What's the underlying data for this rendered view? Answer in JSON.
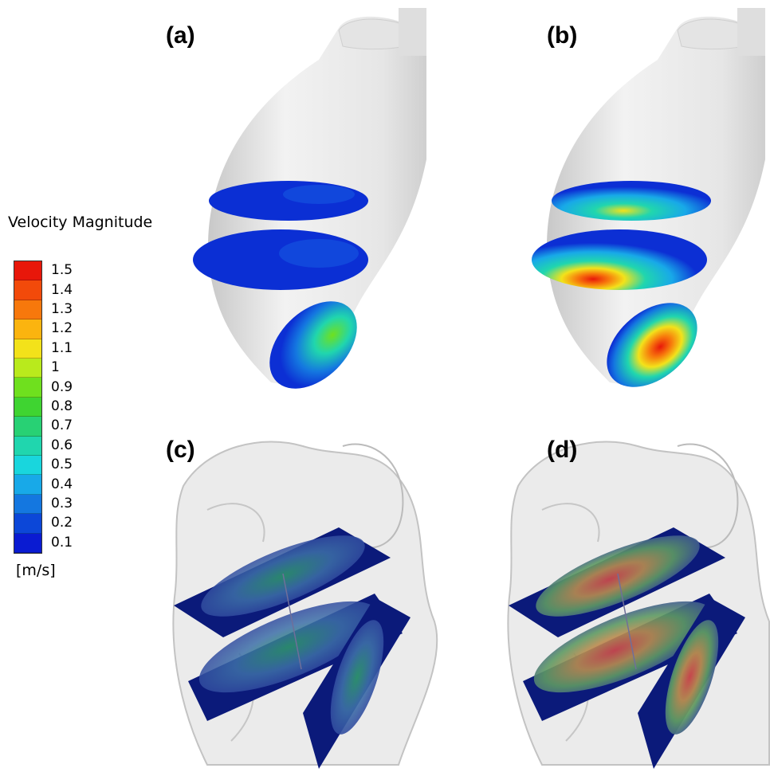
{
  "panels": {
    "a": "(a)",
    "b": "(b)",
    "c": "(c)",
    "d": "(d)"
  },
  "legend": {
    "title": "Velocity Magnitude",
    "unit": "[m/s]",
    "ticks": [
      "1.5",
      "1.4",
      "1.3",
      "1.2",
      "1.1",
      "1",
      "0.9",
      "0.8",
      "0.7",
      "0.6",
      "0.5",
      "0.4",
      "0.3",
      "0.2",
      "0.1"
    ],
    "colors": [
      "#e8170a",
      "#f24a0a",
      "#f7780c",
      "#fbb40f",
      "#f3e21a",
      "#b9ea1c",
      "#6fe01e",
      "#3fd431",
      "#28d174",
      "#20d6ae",
      "#19d6dd",
      "#18a9e8",
      "#1477e0",
      "#0c47d8",
      "#0a1bd2"
    ]
  },
  "colors": {
    "vessel": "#d9d9d9",
    "slice_low": "#0b2fd4",
    "slice_mid": "#1ba3ff",
    "plane_navy": "#0b1a7a"
  }
}
